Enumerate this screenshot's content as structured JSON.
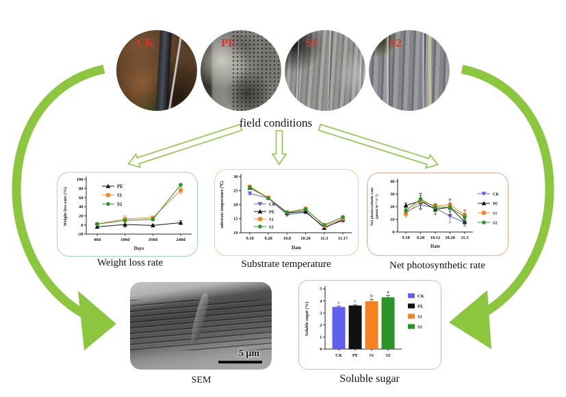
{
  "labels": {
    "field_conditions": "field conditions"
  },
  "photos": {
    "items": [
      {
        "label": "CK"
      },
      {
        "label": "PE"
      },
      {
        "label": "S1"
      },
      {
        "label": "S2"
      }
    ]
  },
  "sem": {
    "caption": "SEM",
    "scale_label": "5 μm"
  },
  "palette": {
    "arrow_green": "#8cc63f",
    "ck_blue": "#5f5ff0",
    "pe_black": "#111111",
    "s1_orange": "#f5821f",
    "s2_green": "#2b9428",
    "card_mint": "#99d9bc",
    "card_orange": "#f7ca92",
    "card_salmon": "#f2a58b",
    "card_blue": "#aac7e8",
    "photo_label_red": "#e4302b"
  },
  "chart_data": [
    {
      "id": "weight_loss",
      "type": "line",
      "title": "Weight loss rate",
      "categories": [
        "40d",
        "100d",
        "160d",
        "240d"
      ],
      "xlabel": "Days",
      "ylabel": "Weight loss rate (%)",
      "ylim": [
        -20,
        100
      ],
      "yticks": [
        -20,
        0,
        20,
        40,
        60,
        80,
        100
      ],
      "legend_position": "top-left-inside",
      "series": [
        {
          "name": "PE",
          "color": "#111111",
          "marker": "triangle-up",
          "values": [
            -4,
            1,
            -1,
            5
          ],
          "errors": [
            3,
            6,
            3,
            4
          ]
        },
        {
          "name": "S1",
          "color": "#f5821f",
          "marker": "square",
          "values": [
            2,
            13,
            16,
            76
          ],
          "errors": [
            2,
            7,
            3,
            7
          ]
        },
        {
          "name": "S2",
          "color": "#2b9428",
          "marker": "circle",
          "values": [
            2,
            10,
            12,
            88
          ],
          "errors": [
            2,
            3,
            2,
            3
          ]
        }
      ]
    },
    {
      "id": "substrate_temperature",
      "type": "line",
      "title": "Substrate temperature",
      "categories": [
        "9.18",
        "9.28",
        "10.8",
        "10.20",
        "11.3",
        "11.17"
      ],
      "xlabel": "Date",
      "ylabel": "substrate temperature (℃)",
      "ylim": [
        10,
        30
      ],
      "yticks": [
        10,
        15,
        20,
        25,
        30
      ],
      "legend_position": "mid-left-inside",
      "series": [
        {
          "name": "CK",
          "color": "#5f5ff0",
          "marker": "triangle-down",
          "values": [
            24,
            22.3,
            16.4,
            17.3,
            12,
            14.3
          ],
          "errors": [
            0.5,
            0.4,
            0.5,
            0.5,
            0.5,
            0.5
          ]
        },
        {
          "name": "PE",
          "color": "#111111",
          "marker": "triangle-up",
          "values": [
            26,
            22.4,
            17,
            17.6,
            11.7,
            14.7
          ],
          "errors": [
            0.5,
            0.4,
            0.5,
            0.5,
            0.4,
            0.5
          ]
        },
        {
          "name": "S1",
          "color": "#f5821f",
          "marker": "square",
          "values": [
            26.4,
            22.5,
            17.3,
            18.6,
            12.4,
            15
          ],
          "errors": [
            0.5,
            0.4,
            0.4,
            0.4,
            0.5,
            0.5
          ]
        },
        {
          "name": "S2",
          "color": "#2b9428",
          "marker": "circle",
          "values": [
            26.1,
            22.3,
            17.2,
            18.3,
            12.8,
            15.6
          ],
          "errors": [
            0.5,
            0.4,
            0.4,
            0.4,
            0.5,
            0.5
          ]
        }
      ]
    },
    {
      "id": "net_photosynthetic_rate",
      "type": "line",
      "title": "Net photosynthetic rate",
      "categories": [
        "9.18",
        "9.28",
        "10.12",
        "10.20",
        "11.3"
      ],
      "xlabel": "Date",
      "ylabel": "Net photosynthetic rate",
      "ylabel2": "(μmol·m⁻²·s⁻¹)",
      "ylim": [
        0,
        40
      ],
      "yticks": [
        0,
        10,
        20,
        30,
        40
      ],
      "legend_position": "right-outside",
      "series": [
        {
          "name": "CK",
          "color": "#5f5ff0",
          "marker": "triangle-down",
          "values": [
            16,
            21.5,
            19,
            12.5,
            7.5
          ],
          "errors": [
            3,
            4,
            3,
            5,
            3
          ]
        },
        {
          "name": "PE",
          "color": "#111111",
          "marker": "triangle-up",
          "values": [
            21,
            24.5,
            18,
            19.5,
            8
          ],
          "errors": [
            2,
            6,
            4,
            6,
            2
          ]
        },
        {
          "name": "S1",
          "color": "#f5821f",
          "marker": "square",
          "values": [
            14.5,
            24.5,
            20.5,
            21.5,
            13.5
          ],
          "errors": [
            3,
            3,
            2,
            5,
            4
          ]
        },
        {
          "name": "S2",
          "color": "#2b9428",
          "marker": "circle",
          "values": [
            17,
            26,
            19.5,
            19.5,
            12
          ],
          "errors": [
            2,
            3,
            3,
            3,
            5
          ]
        }
      ]
    },
    {
      "id": "soluble_sugar",
      "type": "bar",
      "title": "Soluble sugar",
      "categories": [
        "CK",
        "PE",
        "S1",
        "S2"
      ],
      "xlabel": "",
      "ylabel": "Soluble sugar (%)",
      "ylim": [
        0,
        5
      ],
      "yticks": [
        0,
        1,
        2,
        3,
        4,
        5
      ],
      "legend_position": "right-outside",
      "legend": [
        "CK",
        "PE",
        "S1",
        "S2"
      ],
      "colors": [
        "#5f5ff0",
        "#111111",
        "#f5821f",
        "#2b9428"
      ],
      "values": [
        3.5,
        3.62,
        3.97,
        4.3
      ],
      "errors": [
        0.08,
        0.06,
        0.15,
        0.15
      ],
      "letters": [
        "c",
        "c",
        "b",
        "a"
      ]
    }
  ]
}
